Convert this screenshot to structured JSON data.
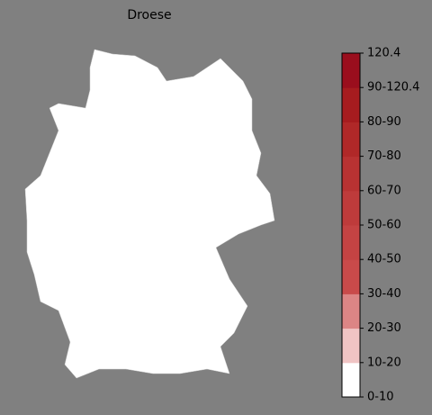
{
  "title": "Droese",
  "colorbar": {
    "ticks": [
      "0-10",
      "10-20",
      "20-30",
      "30-40",
      "40-50",
      "50-60",
      "60-70",
      "70-80",
      "80-90",
      "90-120.4",
      "120.4"
    ],
    "colors": [
      "#ffffff",
      "#f0c4c4",
      "#dc8585",
      "#c94a4a",
      "#c44343",
      "#be3b3b",
      "#b83232",
      "#b02828",
      "#a61c1f",
      "#9a0e1d"
    ]
  }
}
